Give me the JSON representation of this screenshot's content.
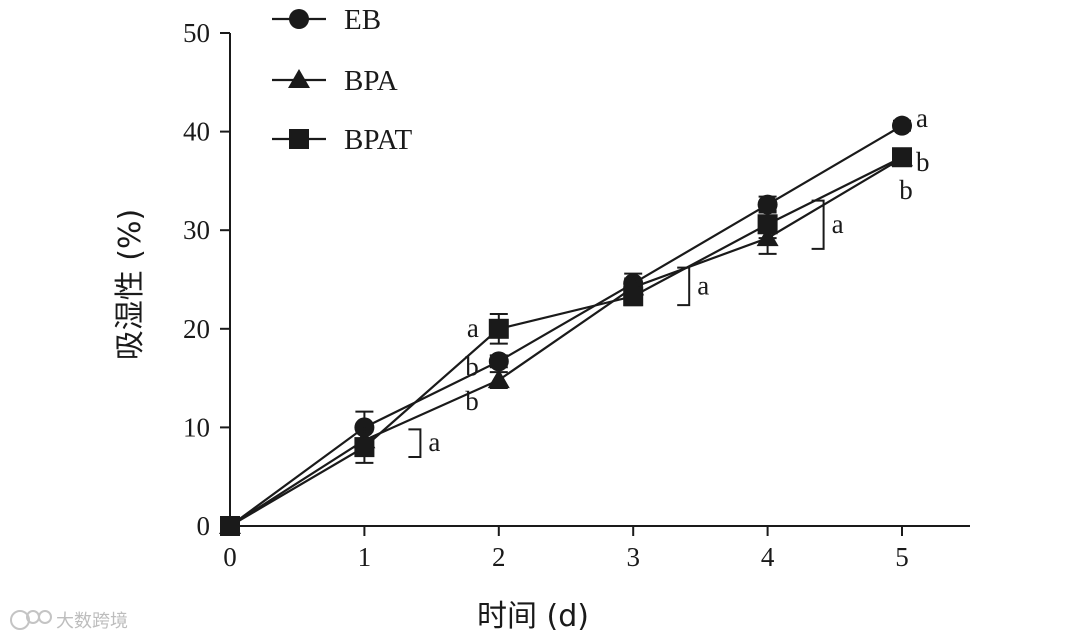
{
  "chart_data": {
    "type": "line",
    "title": "",
    "xlabel": "时间 (d)",
    "ylabel": "吸湿性 (%)",
    "xlim": [
      0,
      5.5
    ],
    "ylim": [
      0,
      50
    ],
    "x_ticks": [
      0,
      1,
      2,
      3,
      4,
      5
    ],
    "y_ticks": [
      0,
      10,
      20,
      30,
      40,
      50
    ],
    "x": [
      0,
      1,
      2,
      3,
      4,
      5
    ],
    "legend_position": "top-left",
    "grid": false,
    "series": [
      {
        "name": "EB",
        "marker": "circle",
        "values": [
          0,
          10.0,
          16.7,
          24.6,
          32.6,
          40.6
        ],
        "errors": [
          0,
          1.6,
          0.6,
          1.0,
          0.8,
          0.5
        ]
      },
      {
        "name": "BPA",
        "marker": "triangle",
        "values": [
          0,
          8.7,
          14.8,
          24.2,
          29.2,
          37.3
        ],
        "errors": [
          0,
          1.4,
          0.8,
          0.9,
          1.6,
          0.5
        ]
      },
      {
        "name": "BPAT",
        "marker": "square",
        "values": [
          0,
          8.0,
          20.0,
          23.3,
          30.6,
          37.4
        ],
        "errors": [
          0,
          1.6,
          1.5,
          0.9,
          1.4,
          0.5
        ]
      }
    ],
    "annotations": [
      {
        "text": "a",
        "x": 1,
        "group": "bracket",
        "y_range": [
          7.0,
          9.8
        ]
      },
      {
        "text": "a",
        "x": 2,
        "side": "left",
        "y": 20.0
      },
      {
        "text": "b",
        "x": 2,
        "side": "left",
        "y": 16.1
      },
      {
        "text": "b",
        "x": 2,
        "side": "left",
        "y": 12.6
      },
      {
        "text": "a",
        "x": 3,
        "group": "bracket",
        "y_range": [
          22.4,
          26.2
        ]
      },
      {
        "text": "a",
        "x": 4,
        "group": "bracket",
        "y_range": [
          28.1,
          33.0
        ]
      },
      {
        "text": "a",
        "x": 5,
        "side": "right",
        "y": 41.3
      },
      {
        "text": "b",
        "x": 5,
        "side": "right",
        "y": 36.8
      },
      {
        "text": "b",
        "x": 5,
        "side": "below",
        "y": 34.0
      }
    ]
  },
  "watermark": {
    "text": "大数跨境",
    "icon": "watermark-logo-icon"
  }
}
